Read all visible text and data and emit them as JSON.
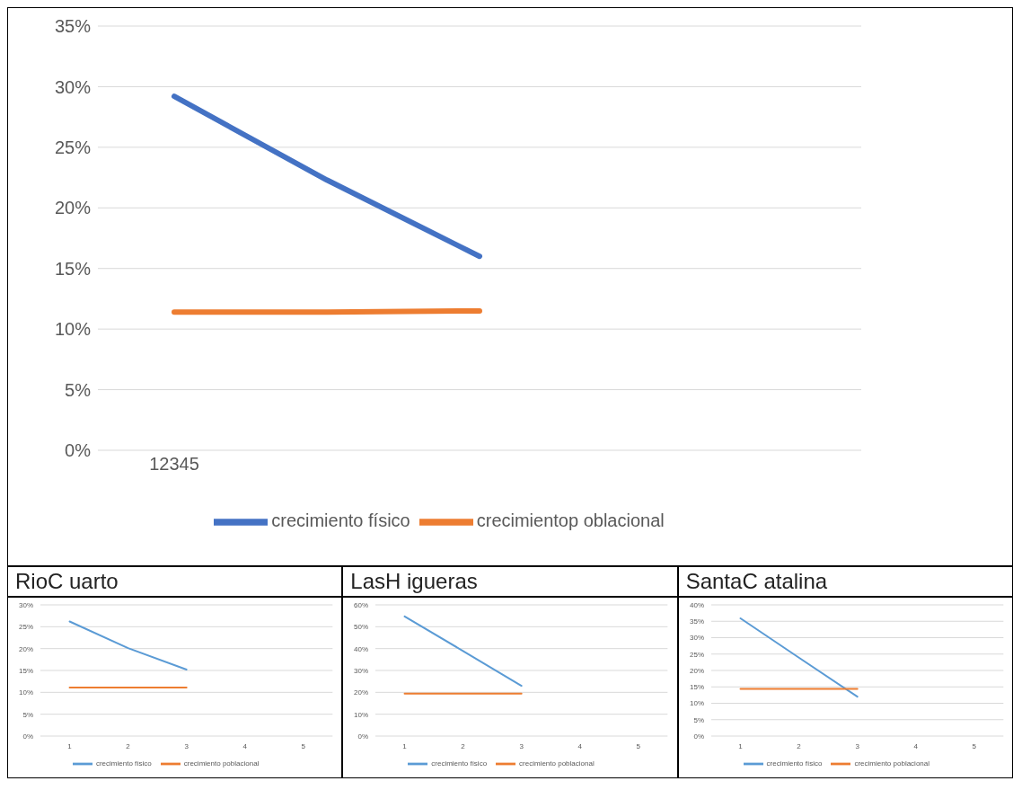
{
  "chart_data": [
    {
      "type": "line",
      "categories": [
        "12345",
        null,
        null,
        null,
        null
      ],
      "ylim": [
        0,
        35
      ],
      "yticks": [
        {
          "value": 0,
          "label": "0%"
        },
        {
          "value": 5,
          "label": "5%"
        },
        {
          "value": 10,
          "label": "10%"
        },
        {
          "value": 15,
          "label": "15%"
        },
        {
          "value": 20,
          "label": "20%"
        },
        {
          "value": 25,
          "label": "25%"
        },
        {
          "value": 30,
          "label": "30%"
        },
        {
          "value": 35,
          "label": "35%"
        }
      ],
      "grid": "y",
      "legend": "bottom",
      "line_style": "solid",
      "series": [
        {
          "name": "crecimiento físico",
          "color": "#4472c4",
          "values": [
            29.2,
            22.3,
            16.0,
            null,
            null
          ]
        },
        {
          "name": "crecimientop oblacional",
          "color": "#ed7d31",
          "values": [
            11.4,
            11.4,
            11.5,
            null,
            null
          ]
        }
      ]
    },
    {
      "type": "line",
      "title": "RioC uarto",
      "categories": [
        "1",
        "2",
        "3",
        "4",
        "5"
      ],
      "ylim": [
        0,
        30
      ],
      "yticks": [
        {
          "value": 0,
          "label": "0%"
        },
        {
          "value": 5,
          "label": "5%"
        },
        {
          "value": 10,
          "label": "10%"
        },
        {
          "value": 15,
          "label": "15%"
        },
        {
          "value": 20,
          "label": "20%"
        },
        {
          "value": 25,
          "label": "25%"
        },
        {
          "value": 30,
          "label": "30%"
        }
      ],
      "grid": "y",
      "legend": "bottom",
      "line_style": "solid",
      "series": [
        {
          "name": "crecimiento físico",
          "color": "#5b9bd5",
          "values": [
            26.2,
            20.1,
            15.2,
            null,
            null
          ]
        },
        {
          "name": "crecimiento poblacional",
          "color": "#ed7d31",
          "values": [
            11.1,
            11.1,
            11.1,
            null,
            null
          ]
        }
      ]
    },
    {
      "type": "line",
      "title": "LasH igueras",
      "categories": [
        "1",
        "2",
        "3",
        "4",
        "5"
      ],
      "ylim": [
        0,
        60
      ],
      "yticks": [
        {
          "value": 0,
          "label": "0%"
        },
        {
          "value": 10,
          "label": "10%"
        },
        {
          "value": 20,
          "label": "20%"
        },
        {
          "value": 30,
          "label": "30%"
        },
        {
          "value": 40,
          "label": "40%"
        },
        {
          "value": 50,
          "label": "50%"
        },
        {
          "value": 60,
          "label": "60%"
        }
      ],
      "grid": "y",
      "legend": "bottom",
      "line_style": "solid",
      "series": [
        {
          "name": "crecimiento físico",
          "color": "#5b9bd5",
          "values": [
            54.7,
            38.9,
            23.0,
            null,
            null
          ]
        },
        {
          "name": "crecimiento poblacional",
          "color": "#ed7d31",
          "values": [
            19.4,
            19.4,
            19.4,
            null,
            null
          ]
        }
      ]
    },
    {
      "type": "line",
      "title": "SantaC atalina",
      "categories": [
        "1",
        "2",
        "3",
        "4",
        "5"
      ],
      "ylim": [
        0,
        40
      ],
      "yticks": [
        {
          "value": 0,
          "label": "0%"
        },
        {
          "value": 5,
          "label": "5%"
        },
        {
          "value": 10,
          "label": "10%"
        },
        {
          "value": 15,
          "label": "15%"
        },
        {
          "value": 20,
          "label": "20%"
        },
        {
          "value": 25,
          "label": "25%"
        },
        {
          "value": 30,
          "label": "30%"
        },
        {
          "value": 35,
          "label": "35%"
        },
        {
          "value": 40,
          "label": "40%"
        }
      ],
      "grid": "y",
      "legend": "bottom",
      "line_style": "solid",
      "series": [
        {
          "name": "crecimiento físico",
          "color": "#5b9bd5",
          "values": [
            35.9,
            23.9,
            12.0,
            null,
            null
          ]
        },
        {
          "name": "crecimiento poblacional",
          "color": "#ed7d31",
          "values": [
            14.4,
            14.4,
            14.4,
            null,
            null
          ]
        }
      ]
    }
  ]
}
